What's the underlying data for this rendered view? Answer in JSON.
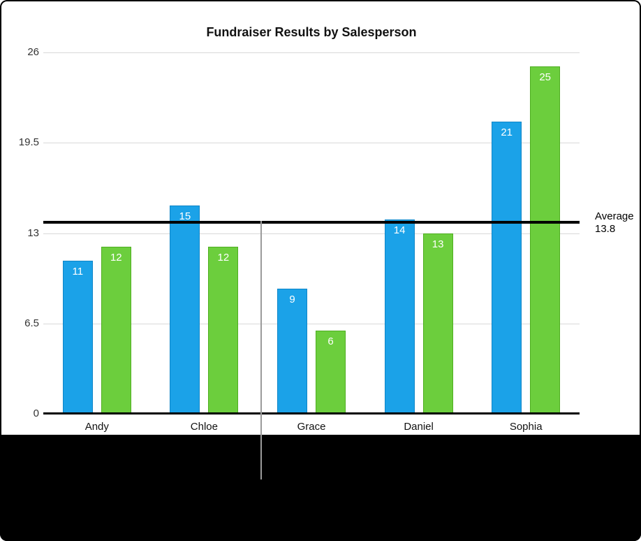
{
  "chart_data": {
    "type": "bar",
    "title": "Fundraiser Results by Salesperson",
    "categories": [
      "Andy",
      "Chloe",
      "Grace",
      "Daniel",
      "Sophia"
    ],
    "series": [
      {
        "color": "#1ba2e8",
        "border_color": "#0f86c8",
        "values": [
          11,
          15,
          9,
          14,
          21
        ]
      },
      {
        "color": "#6cce3d",
        "border_color": "#4fae21",
        "values": [
          12,
          12,
          6,
          13,
          25
        ]
      }
    ],
    "y_ticks": [
      0,
      6.5,
      13,
      19.5,
      26
    ],
    "ylim": [
      0,
      26
    ],
    "grid": true,
    "bar_labels": true,
    "legend": "none",
    "average_line": {
      "value": 13.8,
      "label_line1": "Average",
      "label_line2": "13.8"
    }
  },
  "colors": {
    "grid": "#d9d9d9",
    "axis": "#000000",
    "average_line": "#000000",
    "divider_line": "#9b9b9b",
    "bar_value_text": "#ffffff",
    "background_band": "#000000"
  }
}
